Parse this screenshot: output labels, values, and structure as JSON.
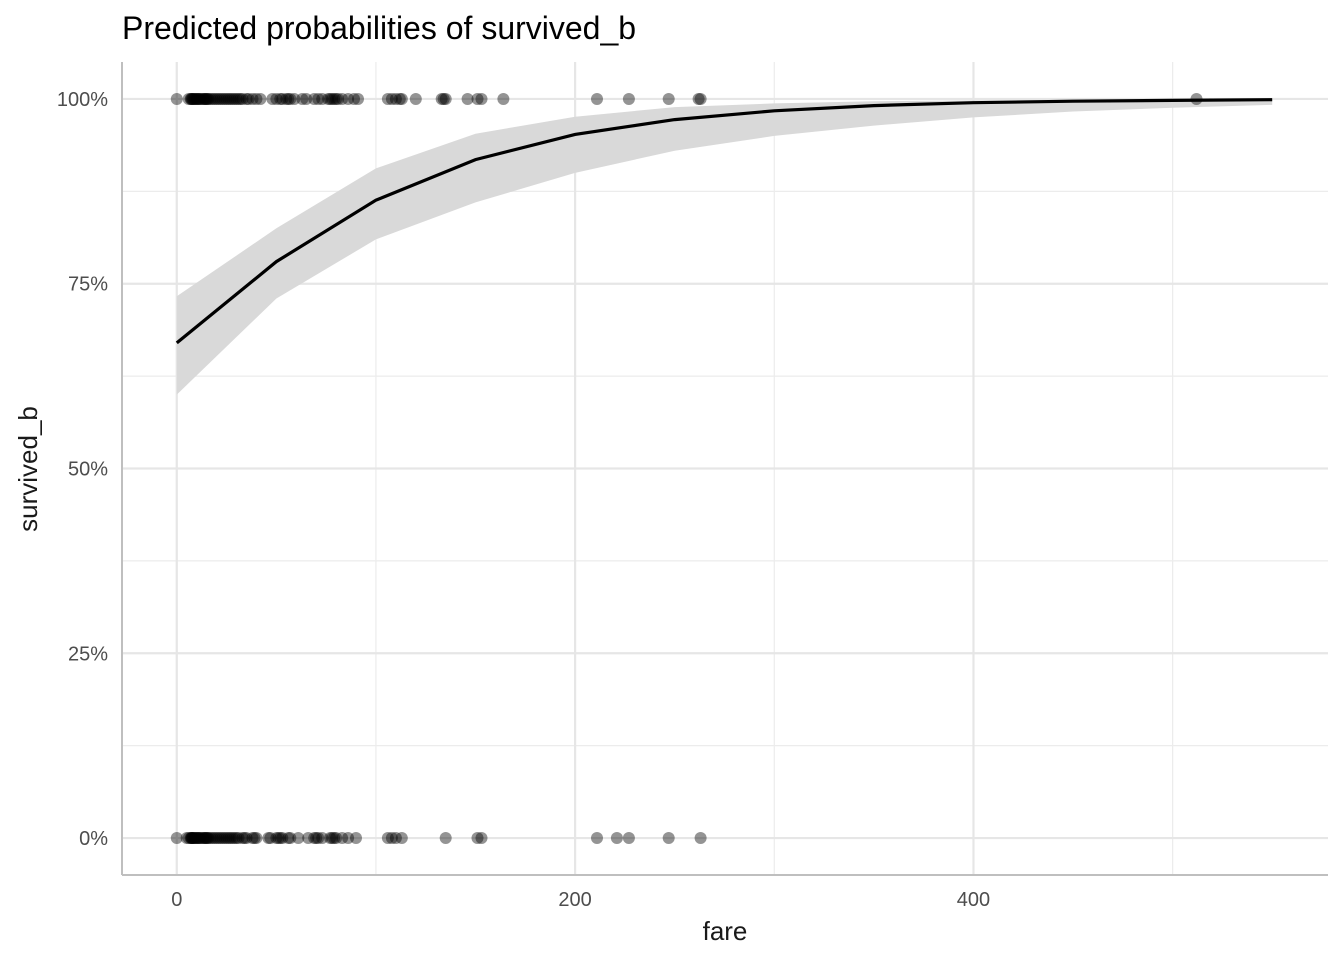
{
  "chart_data": {
    "type": "line",
    "title": "Predicted probabilities of survived_b",
    "xlabel": "fare",
    "ylabel": "survived_b",
    "xlim": [
      -27.5,
      578
    ],
    "ylim": [
      -0.05,
      1.05
    ],
    "x_ticks": [
      0,
      200,
      400
    ],
    "x_tick_labels": [
      "0",
      "200",
      "400"
    ],
    "y_ticks": [
      0,
      0.25,
      0.5,
      0.75,
      1
    ],
    "y_tick_labels": [
      "0%",
      "25%",
      "50%",
      "75%",
      "100%"
    ],
    "grid": true,
    "legend": "none",
    "colors": {
      "line": "#000000",
      "ribbon": "#d9d9d9",
      "points": "#000000"
    },
    "series": [
      {
        "x": [
          0,
          50,
          100,
          150,
          200,
          250,
          300,
          350,
          400,
          450,
          500,
          550
        ],
        "y": [
          0.67,
          0.78,
          0.863,
          0.918,
          0.952,
          0.972,
          0.984,
          0.991,
          0.995,
          0.997,
          0.998,
          0.999
        ],
        "ci_low": [
          0.6,
          0.73,
          0.81,
          0.86,
          0.9,
          0.93,
          0.95,
          0.964,
          0.975,
          0.983,
          0.988,
          0.992
        ],
        "ci_high": [
          0.733,
          0.825,
          0.906,
          0.953,
          0.976,
          0.989,
          0.994,
          0.997,
          0.998,
          0.999,
          0.999,
          1.0
        ]
      }
    ],
    "points": {
      "survived_1": [
        0,
        6,
        7,
        7.3,
        7.7,
        8,
        8.5,
        9,
        9.5,
        10,
        10.5,
        11,
        11.5,
        12,
        13,
        13.5,
        14,
        14.5,
        15,
        15.5,
        16,
        17,
        18,
        19,
        20,
        21,
        22,
        23,
        24,
        25,
        26,
        27,
        28,
        29,
        30,
        31,
        32,
        33,
        35,
        36,
        38,
        40,
        42,
        48,
        50,
        52,
        53,
        55,
        56,
        57,
        59,
        63,
        65,
        69,
        71,
        73,
        76,
        77,
        78,
        79,
        80,
        81,
        83,
        86,
        89,
        91,
        106,
        108,
        110,
        112,
        113,
        120,
        133,
        134,
        135,
        146,
        151,
        153,
        164,
        211,
        227,
        247,
        262,
        263,
        512
      ],
      "survived_0": [
        0,
        5,
        6,
        7,
        7.3,
        7.5,
        7.8,
        8,
        8.5,
        9,
        9.5,
        10,
        10.5,
        11,
        11.5,
        12,
        13,
        13.5,
        14,
        14.5,
        15,
        15.5,
        16,
        17,
        18,
        19,
        20,
        21,
        22,
        23,
        24,
        25,
        26,
        27,
        28,
        29,
        30,
        31,
        33,
        34,
        35,
        38,
        39,
        40,
        46,
        47,
        50,
        51,
        52,
        53,
        56,
        57,
        61,
        66,
        69,
        70,
        71,
        73,
        77,
        78,
        79,
        80,
        83,
        86,
        90,
        106,
        108,
        110,
        113,
        135,
        151,
        153,
        211,
        221,
        227,
        247,
        263
      ]
    }
  }
}
